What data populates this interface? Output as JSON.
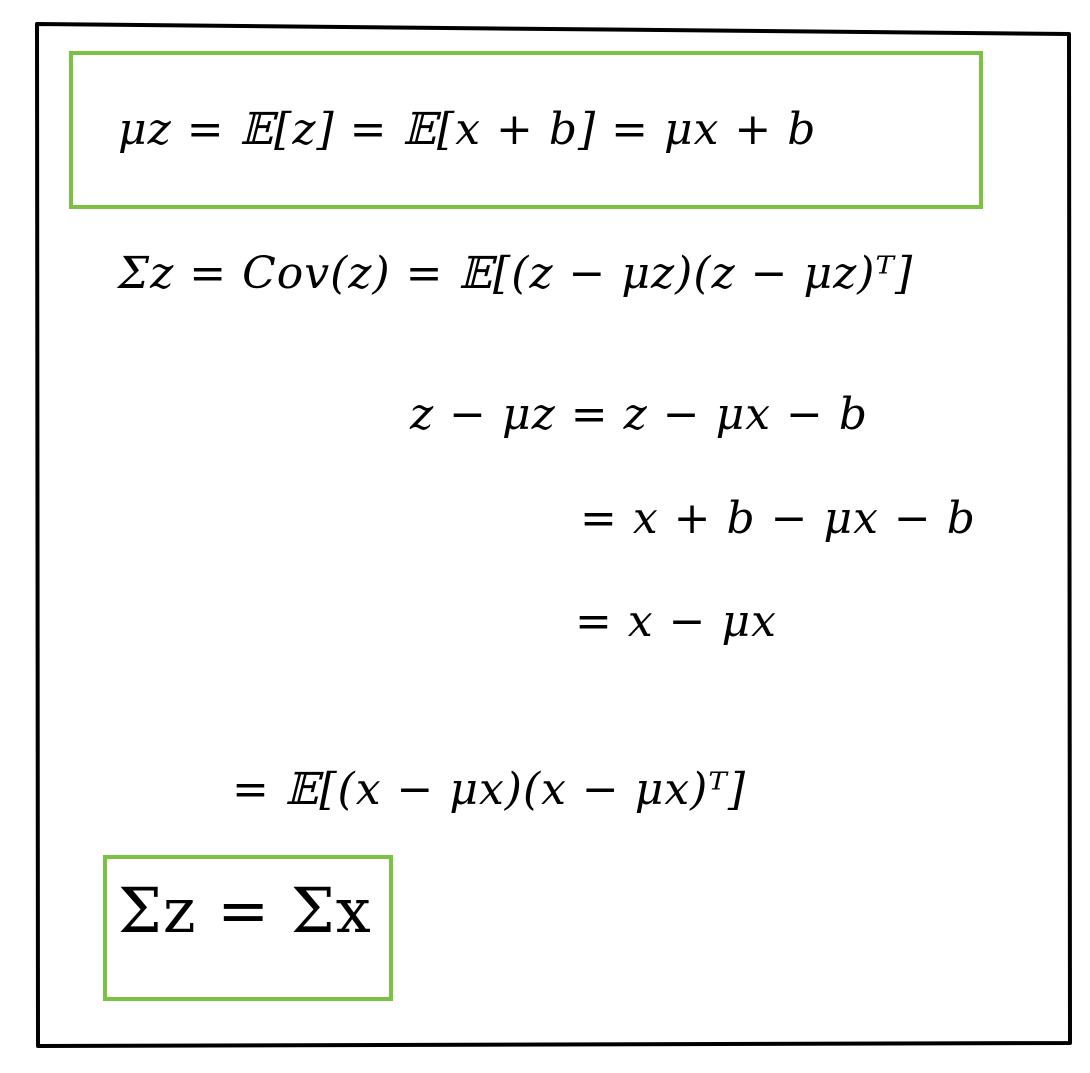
{
  "colors": {
    "ink": "#000000",
    "highlight_box": "#7cc242",
    "background": "#ffffff"
  },
  "derivation": {
    "mean_line": "μz = 𝔼[z] = 𝔼[x + b] = μx + b",
    "cov_definition": "Σz = Cov(z) = 𝔼[(z − μz)(z − μz)ᵀ]",
    "diff_step1": "z − μz = z − μx − b",
    "diff_step2": "= x + b − μx − b",
    "diff_step3": "= x − μx",
    "cov_result": "= 𝔼[(x − μx)(x − μx)ᵀ]",
    "final": "Σz = Σx"
  }
}
